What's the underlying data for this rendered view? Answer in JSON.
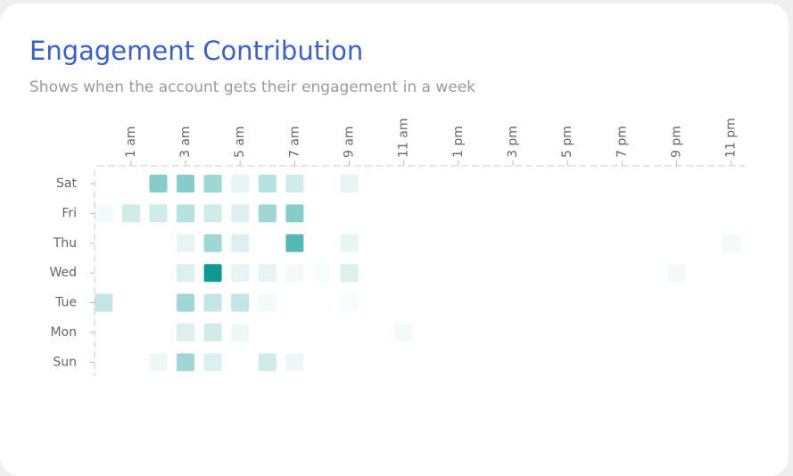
{
  "chart_data": {
    "type": "heatmap",
    "title": "Engagement Contribution",
    "subtitle": "Shows when the account gets their engagement in a week",
    "color": "#0e9a94",
    "x": [
      null,
      "1 am",
      null,
      "3 am",
      null,
      "5 am",
      null,
      "7 am",
      null,
      "9 am",
      null,
      "11 am",
      null,
      "1 pm",
      null,
      "3 pm",
      null,
      "5 pm",
      null,
      "7 pm",
      null,
      "9 pm",
      null,
      "11 pm"
    ],
    "y": [
      "Sat",
      "Fri",
      "Thu",
      "Wed",
      "Tue",
      "Mon",
      "Sun"
    ],
    "values": [
      [
        0,
        0,
        5,
        5,
        4,
        1,
        3,
        2,
        0,
        1,
        0,
        0,
        0,
        0,
        0,
        0,
        0,
        0,
        0,
        0,
        0,
        0,
        0,
        0
      ],
      [
        0.5,
        2,
        2,
        3,
        2,
        1.5,
        4,
        5,
        0,
        0,
        0,
        0,
        0,
        0,
        0,
        0,
        0,
        0,
        0,
        0,
        0,
        0,
        0,
        0
      ],
      [
        0,
        0,
        0,
        1,
        4,
        1.5,
        0,
        7,
        0,
        1,
        0,
        0,
        0,
        0,
        0,
        0,
        0,
        0,
        0,
        0,
        0,
        0,
        0,
        0.5
      ],
      [
        0,
        0,
        0,
        1.5,
        10,
        1,
        1,
        0.5,
        0.3,
        1.5,
        0,
        0,
        0,
        0,
        0,
        0,
        0,
        0,
        0,
        0,
        0,
        0.5,
        0,
        0
      ],
      [
        2.5,
        0,
        0,
        4,
        2.5,
        2.5,
        0.5,
        0,
        0,
        0.3,
        0,
        0,
        0,
        0,
        0,
        0,
        0,
        0,
        0,
        0,
        0,
        0,
        0,
        0
      ],
      [
        0,
        0,
        0,
        1.5,
        2,
        0.7,
        0,
        0,
        0,
        0,
        0,
        0.5,
        0,
        0,
        0,
        0,
        0,
        0,
        0,
        0,
        0,
        0,
        0,
        0
      ],
      [
        0,
        0,
        0.7,
        4,
        1.5,
        0,
        2,
        0.7,
        0,
        0,
        0,
        0,
        0,
        0,
        0,
        0,
        0,
        0,
        0,
        0,
        0,
        0,
        0,
        0
      ]
    ]
  }
}
